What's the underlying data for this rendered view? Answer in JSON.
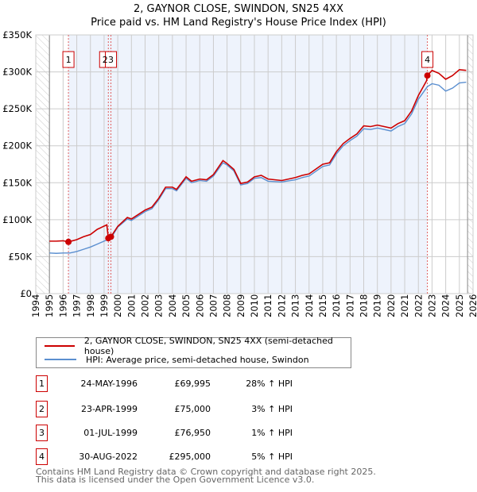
{
  "chart_data": {
    "type": "line",
    "title": "2, GAYNOR CLOSE, SWINDON, SN25 4XX",
    "subtitle": "Price paid vs. HM Land Registry's House Price Index (HPI)",
    "xlim": [
      1994,
      2026
    ],
    "ylim": [
      0,
      350000
    ],
    "x_ticks": [
      "1994",
      "1995",
      "1996",
      "1997",
      "1998",
      "1999",
      "2000",
      "2001",
      "2002",
      "2003",
      "2004",
      "2005",
      "2006",
      "2007",
      "2008",
      "2009",
      "2010",
      "2011",
      "2012",
      "2013",
      "2014",
      "2015",
      "2016",
      "2017",
      "2018",
      "2019",
      "2020",
      "2021",
      "2022",
      "2023",
      "2024",
      "2025",
      "2026"
    ],
    "y_ticks": [
      {
        "v": 0,
        "label": "£0"
      },
      {
        "v": 50000,
        "label": "£50K"
      },
      {
        "v": 100000,
        "label": "£100K"
      },
      {
        "v": 150000,
        "label": "£150K"
      },
      {
        "v": 200000,
        "label": "£200K"
      },
      {
        "v": 250000,
        "label": "£250K"
      },
      {
        "v": 300000,
        "label": "£300K"
      },
      {
        "v": 350000,
        "label": "£350K"
      }
    ],
    "grid": true,
    "series": [
      {
        "name": "2, GAYNOR CLOSE, SWINDON, SN25 4XX (semi-detached house)",
        "color": "#cc0000",
        "points": [
          [
            1995,
            71000
          ],
          [
            1995.5,
            71000
          ],
          [
            1996,
            71500
          ],
          [
            1996.39,
            69995
          ],
          [
            1997,
            73000
          ],
          [
            1997.5,
            77000
          ],
          [
            1998,
            80000
          ],
          [
            1998.5,
            87000
          ],
          [
            1999.2,
            93000
          ],
          [
            1999.31,
            75000
          ],
          [
            1999.5,
            76950
          ],
          [
            2000,
            91000
          ],
          [
            2000.7,
            103000
          ],
          [
            2001,
            101000
          ],
          [
            2002,
            113000
          ],
          [
            2002.5,
            117000
          ],
          [
            2003,
            129000
          ],
          [
            2003.5,
            144000
          ],
          [
            2004,
            144000
          ],
          [
            2004.3,
            141000
          ],
          [
            2004.8,
            153000
          ],
          [
            2005,
            158000
          ],
          [
            2005.4,
            152000
          ],
          [
            2006,
            155000
          ],
          [
            2006.5,
            154000
          ],
          [
            2007,
            161000
          ],
          [
            2007.7,
            180000
          ],
          [
            2008,
            176000
          ],
          [
            2008.5,
            168000
          ],
          [
            2009,
            149000
          ],
          [
            2009.5,
            151000
          ],
          [
            2010,
            158000
          ],
          [
            2010.5,
            160000
          ],
          [
            2011,
            155000
          ],
          [
            2012,
            153000
          ],
          [
            2013,
            157000
          ],
          [
            2013.5,
            160000
          ],
          [
            2014,
            162000
          ],
          [
            2015,
            175000
          ],
          [
            2015.5,
            177000
          ],
          [
            2016,
            192000
          ],
          [
            2016.5,
            203000
          ],
          [
            2017,
            210000
          ],
          [
            2017.5,
            216000
          ],
          [
            2018,
            227000
          ],
          [
            2018.5,
            226000
          ],
          [
            2019,
            228000
          ],
          [
            2020,
            224000
          ],
          [
            2020.5,
            230000
          ],
          [
            2021,
            234000
          ],
          [
            2021.5,
            247000
          ],
          [
            2022,
            268000
          ],
          [
            2022.6,
            288000
          ],
          [
            2022.66,
            295000
          ],
          [
            2023,
            302000
          ],
          [
            2023.5,
            298000
          ],
          [
            2024,
            290000
          ],
          [
            2024.5,
            295000
          ],
          [
            2025,
            303000
          ],
          [
            2025.5,
            302000
          ]
        ]
      },
      {
        "name": "HPI: Average price, semi-detached house, Swindon",
        "color": "#5b8fd0",
        "points": [
          [
            1995,
            55000
          ],
          [
            1995.5,
            54500
          ],
          [
            1996,
            55000
          ],
          [
            1996.5,
            55000
          ],
          [
            1997,
            57000
          ],
          [
            1997.5,
            60000
          ],
          [
            1998,
            63000
          ],
          [
            1998.5,
            67000
          ],
          [
            1999,
            71000
          ],
          [
            1999.5,
            75000
          ],
          [
            2000,
            90000
          ],
          [
            2000.7,
            101000
          ],
          [
            2001,
            99000
          ],
          [
            2002,
            111000
          ],
          [
            2002.5,
            115000
          ],
          [
            2003,
            127000
          ],
          [
            2003.5,
            142000
          ],
          [
            2004,
            142000
          ],
          [
            2004.3,
            139000
          ],
          [
            2004.8,
            151000
          ],
          [
            2005,
            156000
          ],
          [
            2005.4,
            150000
          ],
          [
            2006,
            153000
          ],
          [
            2006.5,
            152000
          ],
          [
            2007,
            159000
          ],
          [
            2007.7,
            177000
          ],
          [
            2008,
            174000
          ],
          [
            2008.5,
            166000
          ],
          [
            2009,
            147000
          ],
          [
            2009.5,
            149000
          ],
          [
            2010,
            156000
          ],
          [
            2010.5,
            157000
          ],
          [
            2011,
            152000
          ],
          [
            2012,
            151000
          ],
          [
            2013,
            154000
          ],
          [
            2013.5,
            157000
          ],
          [
            2014,
            159000
          ],
          [
            2015,
            172000
          ],
          [
            2015.5,
            174000
          ],
          [
            2016,
            189000
          ],
          [
            2016.5,
            200000
          ],
          [
            2017,
            207000
          ],
          [
            2017.5,
            213000
          ],
          [
            2018,
            223000
          ],
          [
            2018.5,
            222000
          ],
          [
            2019,
            224000
          ],
          [
            2020,
            220000
          ],
          [
            2020.5,
            226000
          ],
          [
            2021,
            230000
          ],
          [
            2021.5,
            243000
          ],
          [
            2022,
            263000
          ],
          [
            2022.66,
            280000
          ],
          [
            2023,
            284000
          ],
          [
            2023.5,
            282000
          ],
          [
            2024,
            274000
          ],
          [
            2024.5,
            278000
          ],
          [
            2025,
            285000
          ],
          [
            2025.5,
            286000
          ]
        ]
      }
    ],
    "sales": [
      {
        "n": "1",
        "x": 1996.39,
        "price": 69995
      },
      {
        "n": "2",
        "x": 1999.31,
        "price": 75000
      },
      {
        "n": "3",
        "x": 1999.5,
        "price": 76950
      },
      {
        "n": "4",
        "x": 2022.66,
        "price": 295000
      }
    ],
    "shaded_range": [
      1996.39,
      2022.66
    ],
    "hatched_ranges": [
      [
        1994,
        1995
      ],
      [
        2025.6,
        2026
      ]
    ]
  },
  "title": "2, GAYNOR CLOSE, SWINDON, SN25 4XX",
  "subtitle": "Price paid vs. HM Land Registry's House Price Index (HPI)",
  "legend": [
    "2, GAYNOR CLOSE, SWINDON, SN25 4XX (semi-detached house)",
    "HPI: Average price, semi-detached house, Swindon"
  ],
  "transactions": [
    {
      "n": "1",
      "date": "24-MAY-1996",
      "price": "£69,995",
      "hpi": "28% ↑ HPI"
    },
    {
      "n": "2",
      "date": "23-APR-1999",
      "price": "£75,000",
      "hpi": "3% ↑ HPI"
    },
    {
      "n": "3",
      "date": "01-JUL-1999",
      "price": "£76,950",
      "hpi": "1% ↑ HPI"
    },
    {
      "n": "4",
      "date": "30-AUG-2022",
      "price": "£295,000",
      "hpi": "5% ↑ HPI"
    }
  ],
  "footer": [
    "Contains HM Land Registry data © Crown copyright and database right 2025.",
    "This data is licensed under the Open Government Licence v3.0."
  ]
}
